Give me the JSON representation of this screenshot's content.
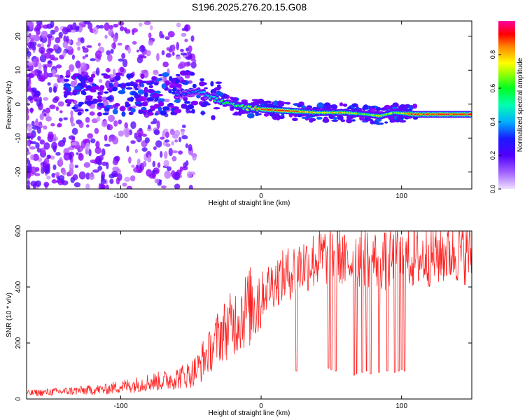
{
  "figure_title": "S196.2025.276.20.15.G08",
  "chart_data": [
    {
      "type": "heatmap",
      "title": "",
      "xlabel": "Height of straight line (km)",
      "ylabel": "Frequency (Hz)",
      "xlim": [
        -167,
        150
      ],
      "ylim": [
        -25,
        24.5
      ],
      "x_ticks": [
        -100,
        0,
        100
      ],
      "x_tick_labels": [
        "-100",
        "0",
        "100"
      ],
      "y_ticks": [
        -20,
        -10,
        0,
        10,
        20
      ],
      "y_tick_labels": [
        "-20",
        "-10",
        "0",
        "10",
        "20"
      ],
      "colorbar": {
        "label": "Normalized spectral amplitude",
        "range": [
          0,
          1
        ],
        "ticks": [
          0.0,
          0.2,
          0.4,
          0.6,
          0.8
        ],
        "tick_labels": [
          "0.0",
          "0.2",
          "0.4",
          "0.6",
          "0.8"
        ],
        "colormap": "rainbow",
        "colors": [
          "#f0e0ff",
          "#8a00ff",
          "#1a1aff",
          "#00e0ff",
          "#00ff20",
          "#ffff00",
          "#ff8000",
          "#ff0000",
          "#ff00a0"
        ]
      },
      "ridge": {
        "x": [
          -60,
          -45,
          -35,
          -25,
          -10,
          0,
          20,
          40,
          60,
          75,
          85,
          95,
          110,
          150
        ],
        "frequency": [
          3,
          4,
          2,
          0,
          -1,
          -1.5,
          -2,
          -2.5,
          -2.5,
          -3,
          -3.5,
          -2.5,
          -3,
          -3
        ],
        "peak_amplitude": [
          0.3,
          0.35,
          0.45,
          0.55,
          0.6,
          0.9,
          0.95,
          0.7,
          0.75,
          0.6,
          0.7,
          0.65,
          0.95,
          0.95
        ]
      },
      "grid": false,
      "legend": "none"
    },
    {
      "type": "line",
      "title": "",
      "xlabel": "Height of straight line (km)",
      "ylabel": "SNR (10 * v/v)",
      "xlim": [
        -167,
        150
      ],
      "ylim": [
        0,
        600
      ],
      "x_ticks": [
        -100,
        0,
        100
      ],
      "x_tick_labels": [
        "-100",
        "0",
        "100"
      ],
      "y_ticks": [
        0,
        200,
        400,
        600
      ],
      "y_tick_labels": [
        "0",
        "200",
        "400",
        "600"
      ],
      "color": "#ff2020",
      "series": [
        {
          "x": [
            -167,
            -150,
            -130,
            -110,
            -100,
            -90,
            -80,
            -70,
            -60,
            -50,
            -45,
            -40,
            -35,
            -30,
            -25,
            -20,
            -15,
            -10,
            -5,
            0,
            5,
            10,
            20,
            30,
            40,
            50,
            55,
            60,
            65,
            70,
            80,
            90,
            100,
            110,
            120,
            130,
            140,
            150
          ],
          "values": [
            20,
            25,
            30,
            35,
            45,
            50,
            60,
            65,
            75,
            90,
            110,
            150,
            180,
            230,
            250,
            270,
            300,
            320,
            340,
            370,
            400,
            420,
            450,
            480,
            500,
            520,
            530,
            480,
            500,
            510,
            500,
            490,
            500,
            500,
            510,
            520,
            525,
            520
          ]
        }
      ],
      "dropouts": {
        "x": [
          25,
          48,
          50,
          53,
          66,
          68,
          72,
          75,
          78,
          84,
          90,
          95,
          98,
          100,
          102
        ],
        "values": [
          100,
          110,
          105,
          100,
          85,
          90,
          95,
          100,
          90,
          95,
          100,
          95,
          100,
          105,
          100
        ]
      },
      "grid": false,
      "legend": "none"
    }
  ]
}
